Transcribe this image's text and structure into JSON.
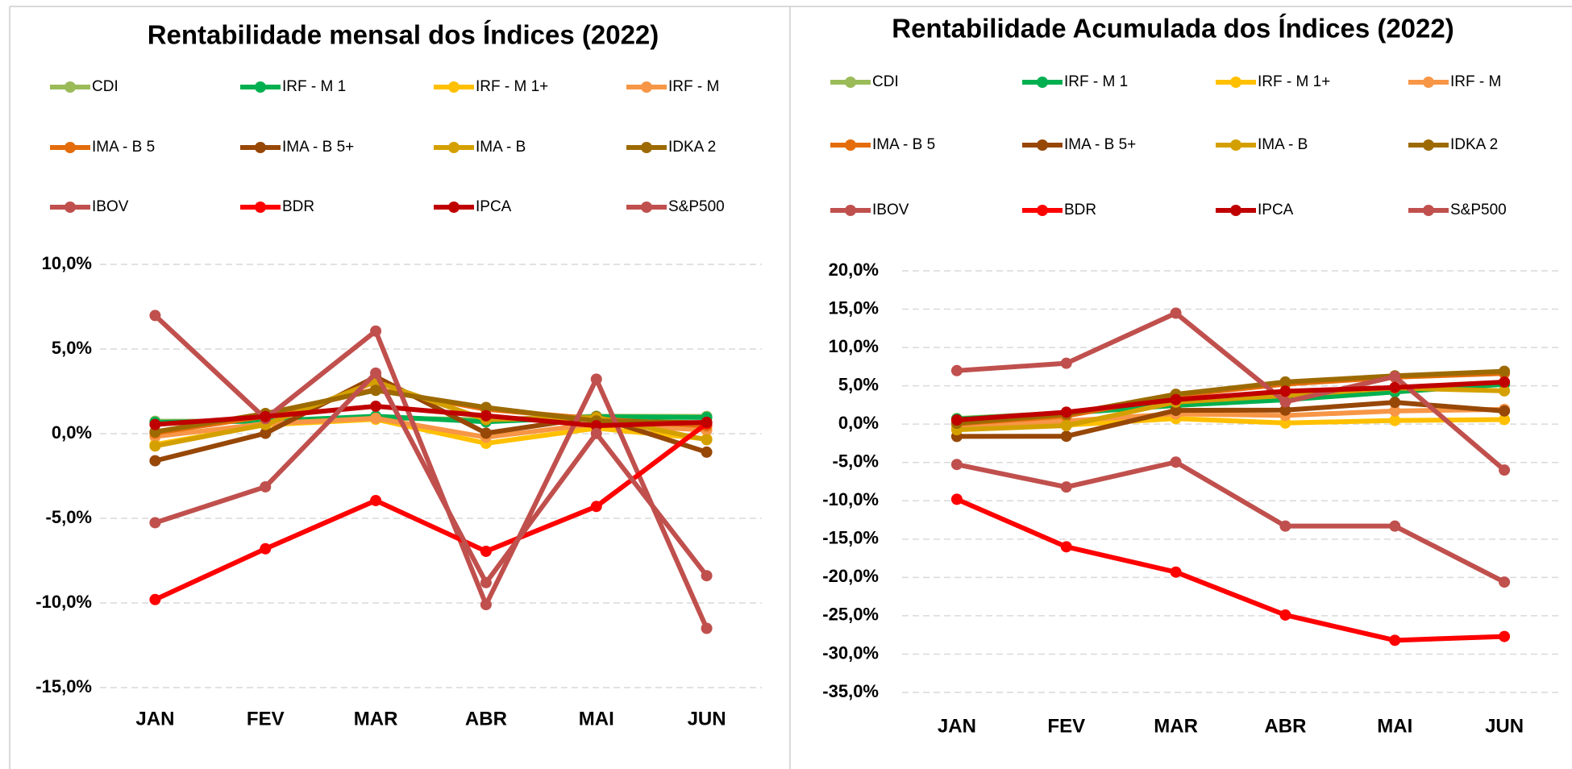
{
  "chart_data": [
    {
      "type": "line",
      "title": "Rentabilidade mensal dos Índices (2022)",
      "categories": [
        "JAN",
        "FEV",
        "MAR",
        "ABR",
        "MAI",
        "JUN"
      ],
      "ylim": [
        -15,
        10
      ],
      "yticks": [
        {
          "value": -15,
          "label": "-15,0%"
        },
        {
          "value": -10,
          "label": "-10,0%"
        },
        {
          "value": -5,
          "label": "-5,0%"
        },
        {
          "value": 0,
          "label": "0,0%"
        },
        {
          "value": 5,
          "label": "5,0%"
        },
        {
          "value": 10,
          "label": "10,0%"
        }
      ],
      "grid": true,
      "series": [
        {
          "name": "CDI",
          "color": "#9bbb59",
          "values": [
            0.73,
            0.75,
            0.93,
            0.83,
            1.03,
            1.02
          ]
        },
        {
          "name": "IRF - M 1",
          "color": "#00b050",
          "values": [
            0.67,
            0.74,
            1.03,
            0.7,
            1.0,
            0.96
          ]
        },
        {
          "name": "IRF - M 1+",
          "color": "#ffc000",
          "values": [
            -0.64,
            0.52,
            0.85,
            -0.57,
            0.32,
            -0.31
          ]
        },
        {
          "name": "IRF - M",
          "color": "#f79646",
          "values": [
            -0.17,
            0.59,
            0.91,
            -0.21,
            0.58,
            0.21
          ]
        },
        {
          "name": "IMA - B 5",
          "color": "#e46c0a",
          "values": [
            0.04,
            1.03,
            2.63,
            1.44,
            0.87,
            0.46
          ]
        },
        {
          "name": "IMA - B 5+",
          "color": "#974706",
          "values": [
            -1.6,
            0.02,
            3.36,
            0.03,
            0.99,
            -1.09
          ]
        },
        {
          "name": "IMA - B",
          "color": "#d4a000",
          "values": [
            -0.73,
            0.54,
            3.07,
            0.83,
            0.96,
            -0.36
          ]
        },
        {
          "name": "IDKA 2",
          "color": "#9c6a00",
          "values": [
            0.11,
            1.19,
            2.56,
            1.55,
            0.75,
            0.64
          ]
        },
        {
          "name": "IBOV",
          "color": "#c0504d",
          "values": [
            6.98,
            0.89,
            6.06,
            -10.1,
            3.22,
            -11.5
          ]
        },
        {
          "name": "BDR",
          "color": "#ff0000",
          "values": [
            -9.8,
            -6.8,
            -3.95,
            -6.95,
            -4.3,
            0.6
          ]
        },
        {
          "name": "IPCA",
          "color": "#c00000",
          "values": [
            0.54,
            1.01,
            1.62,
            1.06,
            0.47,
            0.67
          ]
        },
        {
          "name": "S&P500",
          "color": "#c0504d",
          "values": [
            -5.26,
            -3.14,
            3.58,
            -8.8,
            0.01,
            -8.39
          ]
        }
      ]
    },
    {
      "type": "line",
      "title": "Rentabilidade Acumulada dos Índices (2022)",
      "categories": [
        "JAN",
        "FEV",
        "MAR",
        "ABR",
        "MAI",
        "JUN"
      ],
      "ylim": [
        -35,
        20
      ],
      "yticks": [
        {
          "value": -35,
          "label": "-35,0%"
        },
        {
          "value": -30,
          "label": "-30,0%"
        },
        {
          "value": -25,
          "label": "-25,0%"
        },
        {
          "value": -20,
          "label": "-20,0%"
        },
        {
          "value": -15,
          "label": "-15,0%"
        },
        {
          "value": -10,
          "label": "-10,0%"
        },
        {
          "value": -5,
          "label": "-5,0%"
        },
        {
          "value": 0,
          "label": "0,0%"
        },
        {
          "value": 5,
          "label": "5,0%"
        },
        {
          "value": 10,
          "label": "10,0%"
        },
        {
          "value": 15,
          "label": "15,0%"
        },
        {
          "value": 20,
          "label": "20,0%"
        }
      ],
      "grid": true,
      "series": [
        {
          "name": "CDI",
          "color": "#9bbb59",
          "values": [
            0.73,
            1.49,
            2.43,
            3.28,
            4.35,
            5.41
          ]
        },
        {
          "name": "IRF - M 1",
          "color": "#00b050",
          "values": [
            0.67,
            1.41,
            2.46,
            3.17,
            4.2,
            5.2
          ]
        },
        {
          "name": "IRF - M 1+",
          "color": "#ffc000",
          "values": [
            -0.64,
            -0.12,
            0.73,
            0.15,
            0.48,
            0.6
          ]
        },
        {
          "name": "IRF - M",
          "color": "#f79646",
          "values": [
            -0.17,
            0.42,
            1.34,
            1.13,
            1.72,
            1.93
          ]
        },
        {
          "name": "IMA - B 5",
          "color": "#e46c0a",
          "values": [
            0.04,
            1.07,
            3.73,
            5.22,
            6.13,
            6.62
          ]
        },
        {
          "name": "IMA - B 5+",
          "color": "#974706",
          "values": [
            -1.6,
            -1.58,
            1.8,
            1.83,
            2.84,
            1.72
          ]
        },
        {
          "name": "IMA - B",
          "color": "#d4a000",
          "values": [
            -0.73,
            -0.19,
            2.88,
            3.73,
            4.72,
            4.34
          ]
        },
        {
          "name": "IDKA 2",
          "color": "#9c6a00",
          "values": [
            0.11,
            1.3,
            3.9,
            5.5,
            6.3,
            6.9
          ]
        },
        {
          "name": "IBOV",
          "color": "#c0504d",
          "values": [
            6.98,
            7.94,
            14.48,
            2.9,
            6.2,
            -5.99
          ]
        },
        {
          "name": "BDR",
          "color": "#ff0000",
          "values": [
            -9.8,
            -16.0,
            -19.3,
            -24.9,
            -28.2,
            -27.7
          ]
        },
        {
          "name": "IPCA",
          "color": "#c00000",
          "values": [
            0.54,
            1.56,
            3.2,
            4.29,
            4.78,
            5.49
          ]
        },
        {
          "name": "S&P500",
          "color": "#c0504d",
          "values": [
            -5.26,
            -8.2,
            -4.95,
            -13.3,
            -13.3,
            -20.6
          ]
        }
      ]
    }
  ]
}
